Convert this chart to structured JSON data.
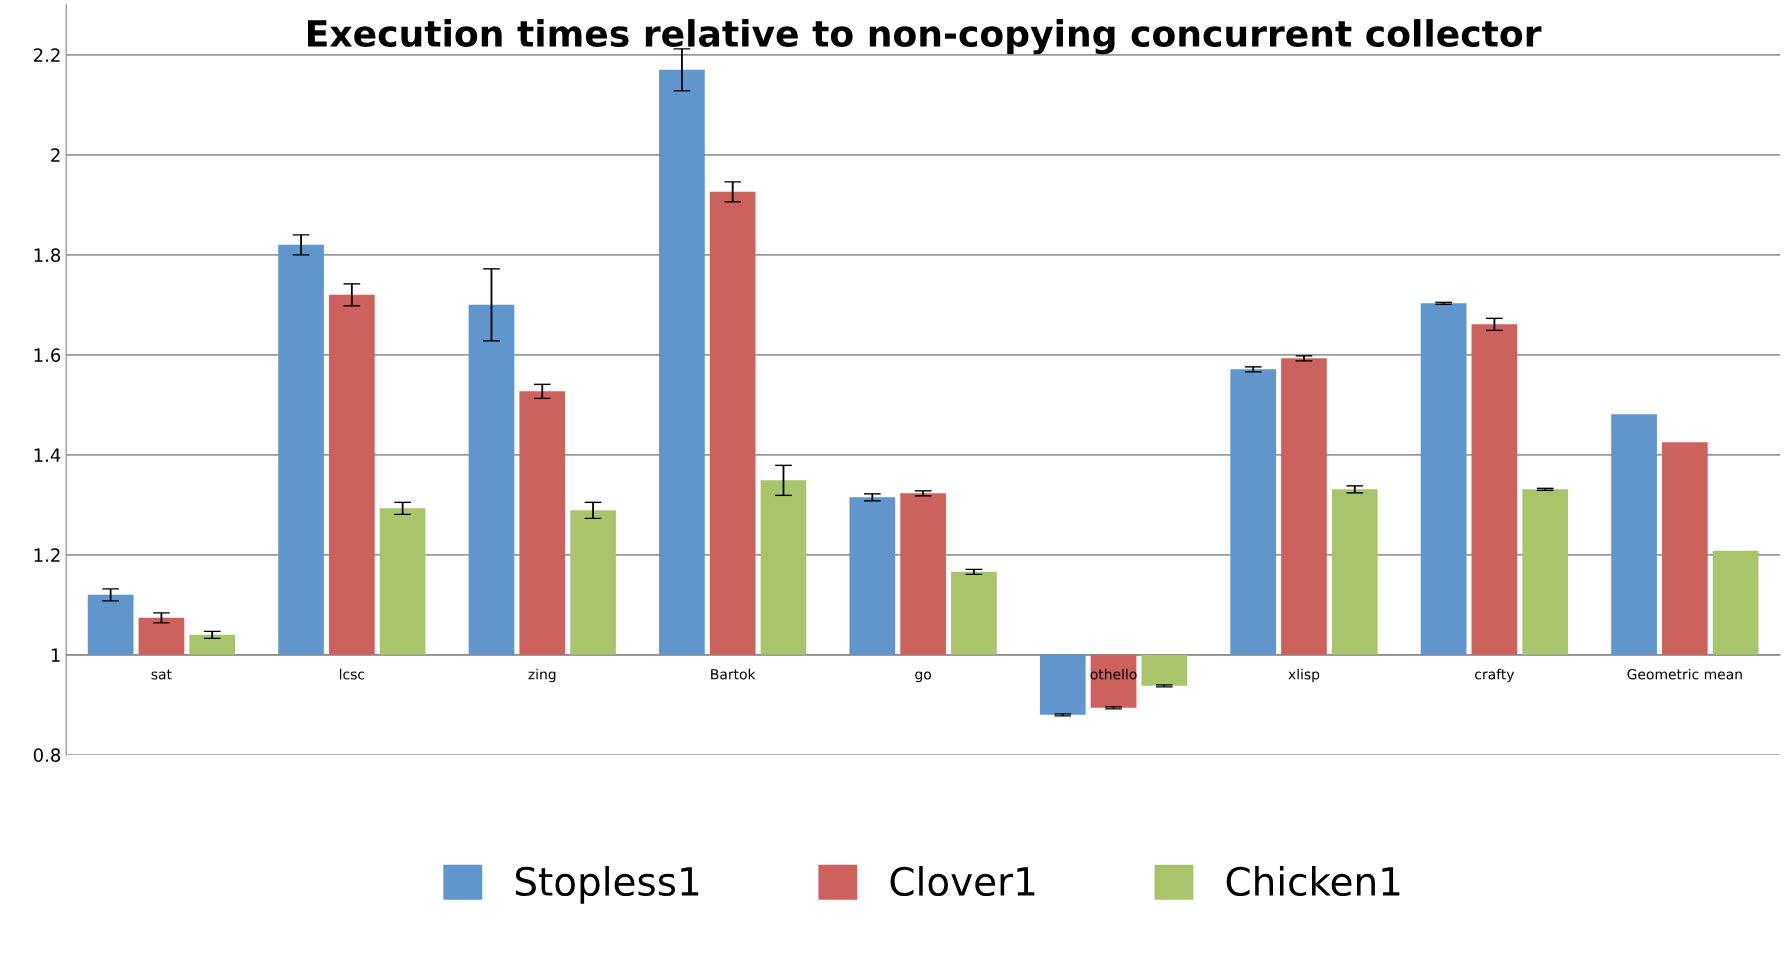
{
  "chart_data": {
    "type": "bar",
    "title": "Execution times relative to non-copying concurrent collector",
    "categories": [
      "sat",
      "lcsc",
      "zing",
      "Bartok",
      "go",
      "othello",
      "xlisp",
      "crafty",
      "Geometric mean"
    ],
    "series": [
      {
        "name": "Stopless1",
        "color": "#6096cb",
        "base": [
          1,
          1,
          1,
          1,
          1,
          1,
          1,
          1,
          1
        ],
        "values": [
          0.12,
          0.82,
          0.7,
          1.17,
          0.315,
          -0.12,
          0.571,
          0.703,
          0.481
        ],
        "errors": [
          0.012,
          0.02,
          0.072,
          0.042,
          0.007,
          0.002,
          0.005,
          0.002,
          null
        ]
      },
      {
        "name": "Clover1",
        "color": "#cd625c",
        "base": [
          1,
          1,
          1,
          1,
          1,
          1,
          1,
          1,
          1
        ],
        "values": [
          0.074,
          0.72,
          0.527,
          0.926,
          0.323,
          -0.106,
          0.593,
          0.661,
          0.425
        ],
        "errors": [
          0.01,
          0.022,
          0.014,
          0.02,
          0.005,
          0.002,
          0.005,
          0.012,
          null
        ]
      },
      {
        "name": "Chicken1",
        "color": "#a9c46a",
        "base": [
          1,
          1,
          1,
          1,
          1,
          1,
          1,
          1,
          1
        ],
        "values": [
          0.04,
          0.293,
          0.289,
          0.349,
          0.166,
          -0.062,
          0.331,
          0.331,
          0.208
        ],
        "errors": [
          0.007,
          0.012,
          0.016,
          0.03,
          0.005,
          0.002,
          0.007,
          0.002,
          null
        ]
      }
    ],
    "ylim": [
      0.8,
      2.3
    ],
    "yticks": [
      {
        "value": 0.8,
        "label": "0.8"
      },
      1,
      {
        "value": 1.2,
        "label": "1.2"
      },
      {
        "value": 1.4,
        "label": "1.4"
      },
      {
        "value": 1.6,
        "label": "1.6"
      },
      {
        "value": 1.8,
        "label": "1.8"
      },
      2,
      {
        "value": 2.2,
        "label": "2.2"
      }
    ],
    "grid": "y",
    "legend": "bottom"
  }
}
